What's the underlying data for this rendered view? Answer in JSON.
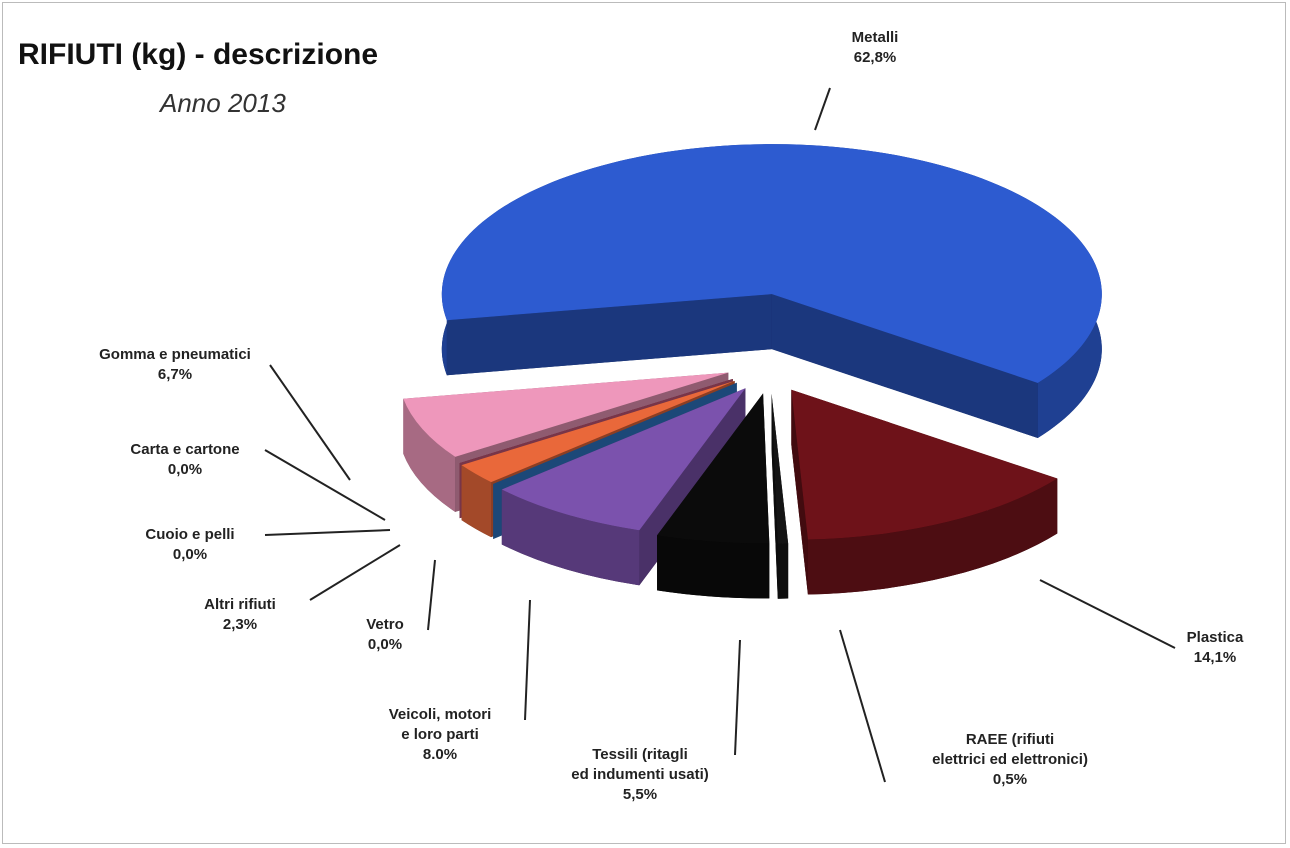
{
  "chart_data": {
    "type": "pie",
    "title": "RIFIUTI (kg) - descrizione",
    "subtitle": "Anno 2013",
    "categories": [
      "Metalli",
      "Plastica",
      "RAEE (rifiuti\nelettrici ed elettronici)",
      "Tessili (ritagli\ned indumenti usati)",
      "Veicoli, motori\ne loro parti",
      "Vetro",
      "Altri rifiuti",
      "Cuoio e pelli",
      "Carta e cartone",
      "Gomma e pneumatici"
    ],
    "values": [
      62.8,
      14.1,
      0.5,
      5.5,
      8.0,
      0.0,
      2.3,
      0.0,
      0.0,
      6.7
    ],
    "value_labels": [
      "62,8%",
      "14,1%",
      "0,5%",
      "5,5%",
      "8.0%",
      "0,0%",
      "2,3%",
      "0,0%",
      "0,0%",
      "6,7%"
    ],
    "colors": [
      "#2d5bd0",
      "#6e1219",
      "#141414",
      "#0b0b0b",
      "#7b52ad",
      "#2f78c8",
      "#e9683a",
      "#b2405e",
      "#c8587a",
      "#ee97bb"
    ]
  }
}
